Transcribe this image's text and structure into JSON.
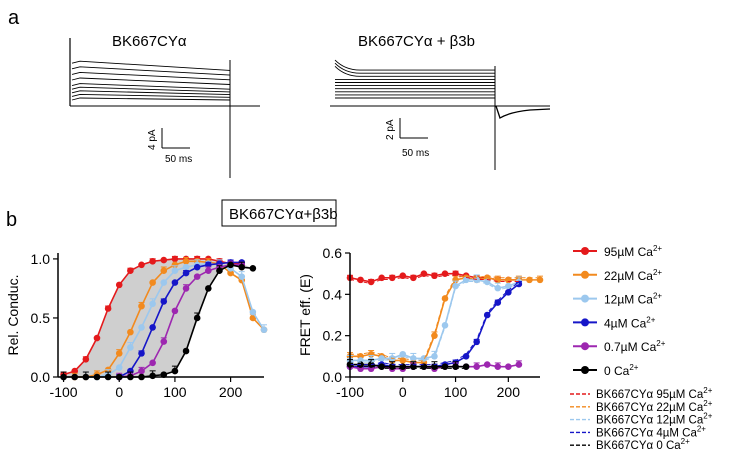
{
  "panel_a": {
    "letter": "a",
    "left_title": "BK667CYα",
    "right_title": "BK667CYα + β3b",
    "left_scale": {
      "y_label": "4 pA",
      "x_label": "50 ms"
    },
    "right_scale": {
      "y_label": "2 pA",
      "x_label": "50 ms"
    }
  },
  "panel_b": {
    "letter": "b",
    "box_title": "BK667CYα+β3b"
  },
  "chart_data": [
    {
      "type": "line",
      "ylabel": "Rel. Conduc.",
      "xlabel": "",
      "xlim": [
        -110,
        260
      ],
      "ylim": [
        0,
        1.05
      ],
      "x_ticks": [
        "-100",
        "0",
        "100",
        "200"
      ],
      "y_ticks": [
        "0.0",
        "0.5",
        "1.0"
      ],
      "shaded_region": "between 95µM Ca2+ and 0 Ca2+ fits",
      "series": [
        {
          "name": "95µM Ca2+",
          "color": "#e41a1c",
          "x": [
            -100,
            -80,
            -60,
            -40,
            -20,
            0,
            20,
            40,
            60,
            80,
            100,
            120,
            140,
            160,
            180,
            200,
            220
          ],
          "y": [
            0.02,
            0.05,
            0.15,
            0.33,
            0.58,
            0.78,
            0.9,
            0.95,
            0.98,
            0.99,
            1.0,
            1.0,
            1.0,
            1.0,
            0.98,
            0.96,
            0.96
          ]
        },
        {
          "name": "22µM Ca2+",
          "color": "#f28a1e",
          "x": [
            -80,
            -60,
            -40,
            -20,
            0,
            20,
            40,
            60,
            80,
            100,
            120,
            140,
            160,
            180,
            200,
            220,
            240,
            260
          ],
          "y": [
            0.0,
            0.0,
            0.02,
            0.06,
            0.2,
            0.38,
            0.6,
            0.8,
            0.9,
            0.95,
            0.98,
            0.98,
            0.97,
            0.96,
            0.88,
            0.82,
            0.5,
            0.4
          ]
        },
        {
          "name": "12µM Ca2+",
          "color": "#9cc8ee",
          "x": [
            -60,
            -40,
            -20,
            0,
            20,
            40,
            60,
            80,
            100,
            120,
            140,
            160,
            180,
            200,
            220,
            240,
            260
          ],
          "y": [
            0.0,
            0.0,
            0.02,
            0.08,
            0.25,
            0.42,
            0.62,
            0.8,
            0.9,
            0.93,
            0.95,
            0.96,
            0.95,
            0.92,
            0.85,
            0.55,
            0.4
          ]
        },
        {
          "name": "4µM Ca2+",
          "color": "#1616c8",
          "x": [
            0,
            20,
            40,
            60,
            80,
            100,
            120,
            140,
            160,
            180,
            200,
            220
          ],
          "y": [
            0.0,
            0.05,
            0.2,
            0.42,
            0.64,
            0.8,
            0.88,
            0.93,
            0.95,
            0.96,
            0.97,
            0.97
          ]
        },
        {
          "name": "0.7µM Ca2+",
          "color": "#9d27b0",
          "x": [
            0,
            20,
            40,
            60,
            80,
            100,
            120,
            140,
            160,
            180,
            200,
            220
          ],
          "y": [
            0.0,
            0.01,
            0.05,
            0.12,
            0.3,
            0.56,
            0.75,
            0.85,
            0.9,
            0.93,
            0.95,
            0.95
          ]
        },
        {
          "name": "0 Ca2+",
          "color": "#000000",
          "x": [
            -100,
            -80,
            -60,
            -40,
            -20,
            0,
            20,
            40,
            60,
            80,
            100,
            120,
            140,
            160,
            180,
            200,
            220,
            240
          ],
          "y": [
            0.0,
            0.0,
            0.0,
            0.0,
            0.0,
            0.0,
            0.0,
            0.0,
            0.01,
            0.02,
            0.05,
            0.22,
            0.5,
            0.75,
            0.9,
            0.95,
            0.93,
            0.92
          ]
        }
      ]
    },
    {
      "type": "line",
      "ylabel": "FRET eff. (E)",
      "xlabel": "",
      "xlim": [
        -100,
        260
      ],
      "ylim": [
        0,
        0.6
      ],
      "x_ticks": [
        "-100",
        "0",
        "100",
        "200"
      ],
      "y_ticks": [
        "0.0",
        "0.2",
        "0.4",
        "0.6"
      ],
      "series": [
        {
          "name": "95µM Ca2+",
          "color": "#e41a1c",
          "x": [
            -100,
            -80,
            -60,
            -40,
            -20,
            0,
            20,
            40,
            60,
            80,
            100,
            120,
            140,
            160,
            180,
            200,
            220
          ],
          "y": [
            0.48,
            0.47,
            0.46,
            0.48,
            0.48,
            0.49,
            0.48,
            0.5,
            0.49,
            0.5,
            0.5,
            0.49,
            0.48,
            0.48,
            0.47,
            0.47,
            0.47
          ]
        },
        {
          "name": "22µM Ca2+",
          "color": "#f28a1e",
          "x": [
            -100,
            -80,
            -60,
            -40,
            -20,
            0,
            20,
            40,
            60,
            80,
            100,
            120,
            140,
            160,
            180,
            200,
            220,
            240,
            260
          ],
          "y": [
            0.1,
            0.1,
            0.11,
            0.1,
            0.08,
            0.08,
            0.07,
            0.07,
            0.2,
            0.38,
            0.47,
            0.48,
            0.47,
            0.48,
            0.47,
            0.47,
            0.47,
            0.47,
            0.47
          ]
        },
        {
          "name": "12µM Ca2+",
          "color": "#9cc8ee",
          "x": [
            -100,
            -80,
            -60,
            -40,
            -20,
            0,
            20,
            40,
            60,
            80,
            100,
            120,
            140,
            160,
            180,
            200,
            220
          ],
          "y": [
            0.08,
            0.08,
            0.08,
            0.09,
            0.09,
            0.11,
            0.09,
            0.09,
            0.1,
            0.25,
            0.44,
            0.47,
            0.47,
            0.46,
            0.43,
            0.44,
            0.46
          ]
        },
        {
          "name": "4µM Ca2+",
          "color": "#1616c8",
          "x": [
            -100,
            -80,
            -60,
            -40,
            -20,
            0,
            20,
            40,
            60,
            80,
            100,
            120,
            140,
            160,
            180,
            200,
            220
          ],
          "y": [
            0.05,
            0.05,
            0.05,
            0.06,
            0.05,
            0.05,
            0.05,
            0.05,
            0.05,
            0.06,
            0.07,
            0.1,
            0.17,
            0.3,
            0.36,
            0.41,
            0.45
          ]
        },
        {
          "name": "0.7µM Ca2+",
          "color": "#9d27b0",
          "x": [
            -100,
            -80,
            -60,
            -40,
            -20,
            0,
            20,
            40,
            60,
            80,
            100,
            120,
            140,
            160,
            180,
            200,
            220
          ],
          "y": [
            0.05,
            0.04,
            0.04,
            0.05,
            0.04,
            0.04,
            0.05,
            0.05,
            0.04,
            0.05,
            0.05,
            0.05,
            0.05,
            0.06,
            0.05,
            0.05,
            0.06
          ]
        },
        {
          "name": "0 Ca2+",
          "color": "#000000",
          "x": [
            -100,
            -80,
            -60,
            -40,
            -20,
            0,
            20,
            40,
            60,
            80,
            100,
            120
          ],
          "y": [
            0.06,
            0.06,
            0.06,
            0.05,
            0.05,
            0.05,
            0.05,
            0.05,
            0.05,
            0.05,
            0.05,
            0.05
          ]
        }
      ]
    }
  ],
  "legend": {
    "markers": [
      {
        "label": "95µM Ca",
        "sup": "2+",
        "color": "#e41a1c"
      },
      {
        "label": "22µM Ca",
        "sup": "2+",
        "color": "#f28a1e"
      },
      {
        "label": "12µM Ca",
        "sup": "2+",
        "color": "#9cc8ee"
      },
      {
        "label": "4µM Ca",
        "sup": "2+",
        "color": "#1616c8"
      },
      {
        "label": "0.7µM Ca",
        "sup": "2+",
        "color": "#9d27b0"
      },
      {
        "label": "0 Ca",
        "sup": "2+",
        "color": "#000000"
      }
    ],
    "dashed": [
      {
        "label": "BK667CYα 95µM Ca",
        "sup": "2+",
        "color": "#e41a1c"
      },
      {
        "label": "BK667CYα 22µM Ca",
        "sup": "2+",
        "color": "#f28a1e"
      },
      {
        "label": "BK667CYα 12µM Ca",
        "sup": "2+",
        "color": "#9cc8ee"
      },
      {
        "label": "BK667CYα 4µM Ca",
        "sup": "2+",
        "color": "#1616c8"
      },
      {
        "label": "BK667CYα 0 Ca",
        "sup": "2+",
        "color": "#000000"
      }
    ]
  }
}
